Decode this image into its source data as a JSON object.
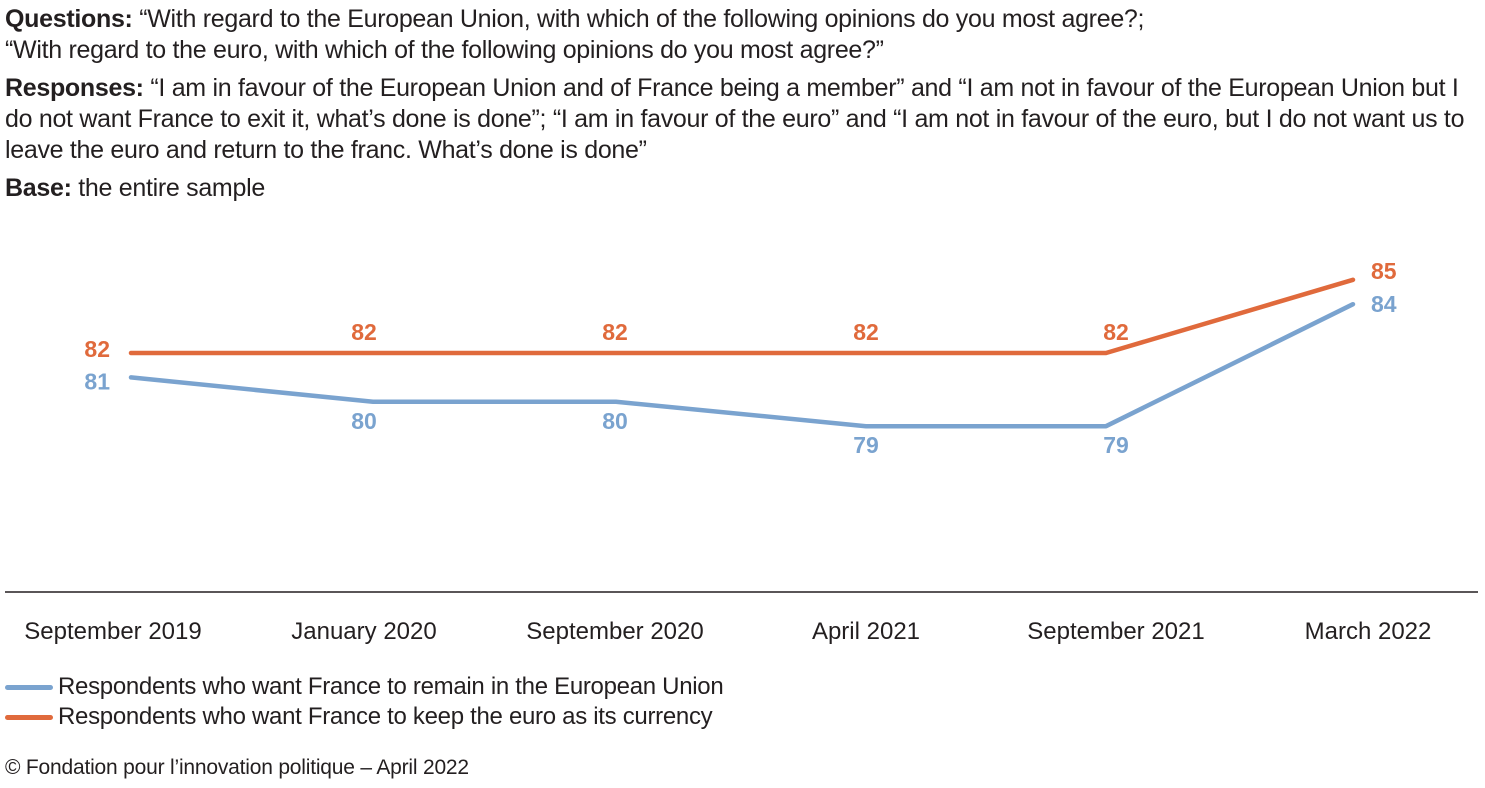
{
  "intro": {
    "questions_label": "Questions:",
    "questions_line1": "“With regard to the European Union, with which of the following opinions do you most agree?;",
    "questions_line2": "“With regard to the euro, with which of the following opinions do you most agree?”",
    "responses_label": "Responses:",
    "responses_text": "“I am in favour of the European Union and of France being a member” and “I am not in favour of the European Union but I do not want France to exit it, what’s done is done”; “I am in favour of the euro” and “I am not in favour of the euro, but I do not want us to leave the euro and return to the franc. What’s done is done”",
    "base_label": "Base:",
    "base_text": "the entire sample"
  },
  "chart_data": {
    "type": "line",
    "title": "",
    "xlabel": "",
    "ylabel": "",
    "grid": false,
    "categories": [
      "September 2019",
      "January 2020",
      "September 2020",
      "April 2021",
      "September 2021",
      "March 2022"
    ],
    "series": [
      {
        "name": "Respondents who want France to remain in the European Union",
        "color": "#7aa3cf",
        "values": [
          81,
          80,
          80,
          79,
          79,
          84
        ]
      },
      {
        "name": "Respondents who want France to keep the euro as its currency",
        "color": "#e06a3c",
        "values": [
          82,
          82,
          82,
          82,
          82,
          85
        ]
      }
    ],
    "legend_position": "bottom-left"
  },
  "footer": {
    "copyright": "© Fondation pour l’innovation politique – April 2022"
  }
}
